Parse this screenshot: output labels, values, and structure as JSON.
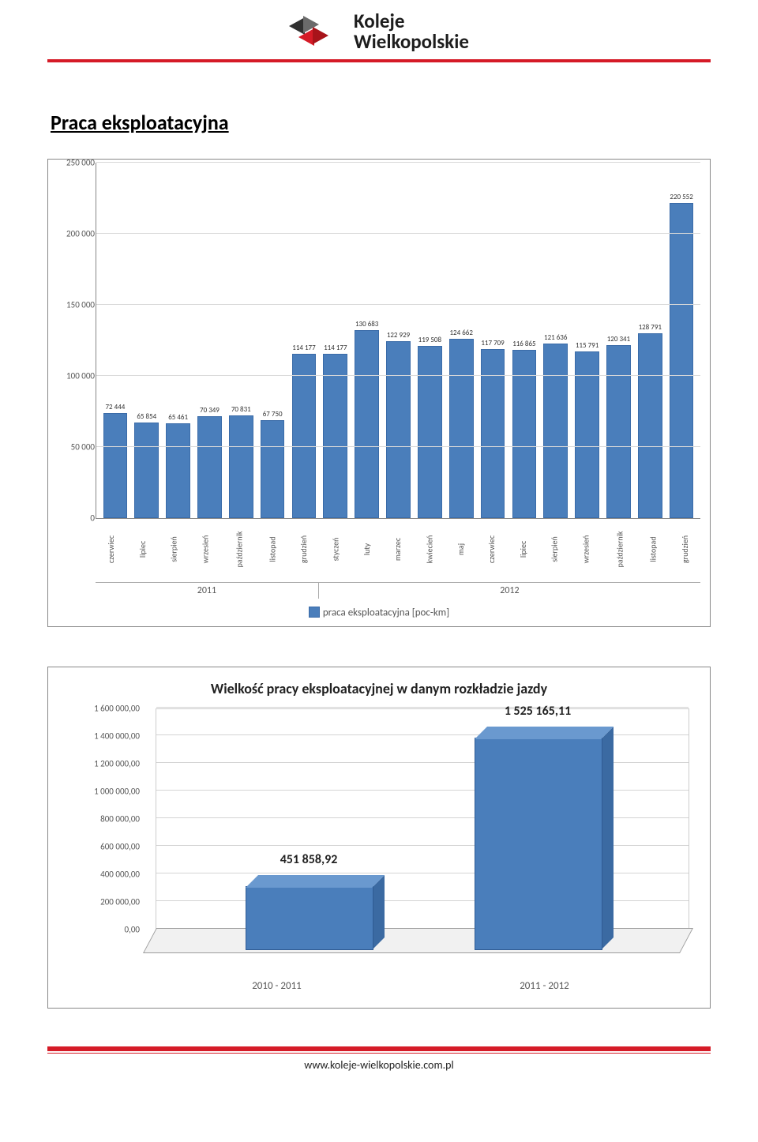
{
  "brand": {
    "line1": "Koleje",
    "line2": "Wielkopolskie",
    "accent_color": "#d51b27"
  },
  "section_title": "Praca eksploatacyjna",
  "chart1": {
    "type": "bar",
    "ylim": [
      0,
      250000
    ],
    "ytick_step": 50000,
    "yticks": [
      "0",
      "50 000",
      "100 000",
      "150 000",
      "200 000",
      "250 000"
    ],
    "bar_color": "#4a7ebb",
    "bar_border": "#3a6ba8",
    "grid_color": "#d9d9d9",
    "years": [
      {
        "label": "2011",
        "count": 7
      },
      {
        "label": "2012",
        "count": 12
      }
    ],
    "bars": [
      {
        "label": "czerwiec",
        "value": 72444,
        "disp": "72 444"
      },
      {
        "label": "lipiec",
        "value": 65854,
        "disp": "65 854"
      },
      {
        "label": "sierpień",
        "value": 65461,
        "disp": "65 461"
      },
      {
        "label": "wrzesień",
        "value": 70349,
        "disp": "70 349"
      },
      {
        "label": "październik",
        "value": 70831,
        "disp": "70 831"
      },
      {
        "label": "listopad",
        "value": 67750,
        "disp": "67 750"
      },
      {
        "label": "grudzień",
        "value": 114177,
        "disp": "114 177"
      },
      {
        "label": "styczeń",
        "value": 114177,
        "disp": "114 177"
      },
      {
        "label": "luty",
        "value": 130683,
        "disp": "130 683"
      },
      {
        "label": "marzec",
        "value": 122929,
        "disp": "122 929"
      },
      {
        "label": "kwiecień",
        "value": 119508,
        "disp": "119 508"
      },
      {
        "label": "maj",
        "value": 124662,
        "disp": "124 662"
      },
      {
        "label": "czerwiec",
        "value": 117709,
        "disp": "117 709"
      },
      {
        "label": "lipiec",
        "value": 116865,
        "disp": "116 865"
      },
      {
        "label": "sierpień",
        "value": 121636,
        "disp": "121 636"
      },
      {
        "label": "wrzesień",
        "value": 115791,
        "disp": "115 791"
      },
      {
        "label": "październik",
        "value": 120341,
        "disp": "120 341"
      },
      {
        "label": "listopad",
        "value": 128791,
        "disp": "128 791"
      },
      {
        "label": "grudzień",
        "value": 220552,
        "disp": "220 552"
      }
    ],
    "legend_label": "praca eksploatacyjna [poc-km]"
  },
  "chart2": {
    "type": "bar-3d",
    "title": "Wielkość pracy eksploatacyjnej w danym rozkładzie jazdy",
    "ylim": [
      0,
      1600000
    ],
    "ytick_step": 200000,
    "yticks": [
      "0,00",
      "200 000,00",
      "400 000,00",
      "600 000,00",
      "800 000,00",
      "1 000 000,00",
      "1 200 000,00",
      "1 400 000,00",
      "1 600 000,00"
    ],
    "bar_color": "#4a7ebb",
    "bars": [
      {
        "label": "2010 - 2011",
        "value": 451858.92,
        "disp": "451 858,92"
      },
      {
        "label": "2011 - 2012",
        "value": 1525165.11,
        "disp": "1 525 165,11"
      }
    ]
  },
  "footer_url": "www.koleje-wielkopolskie.com.pl"
}
